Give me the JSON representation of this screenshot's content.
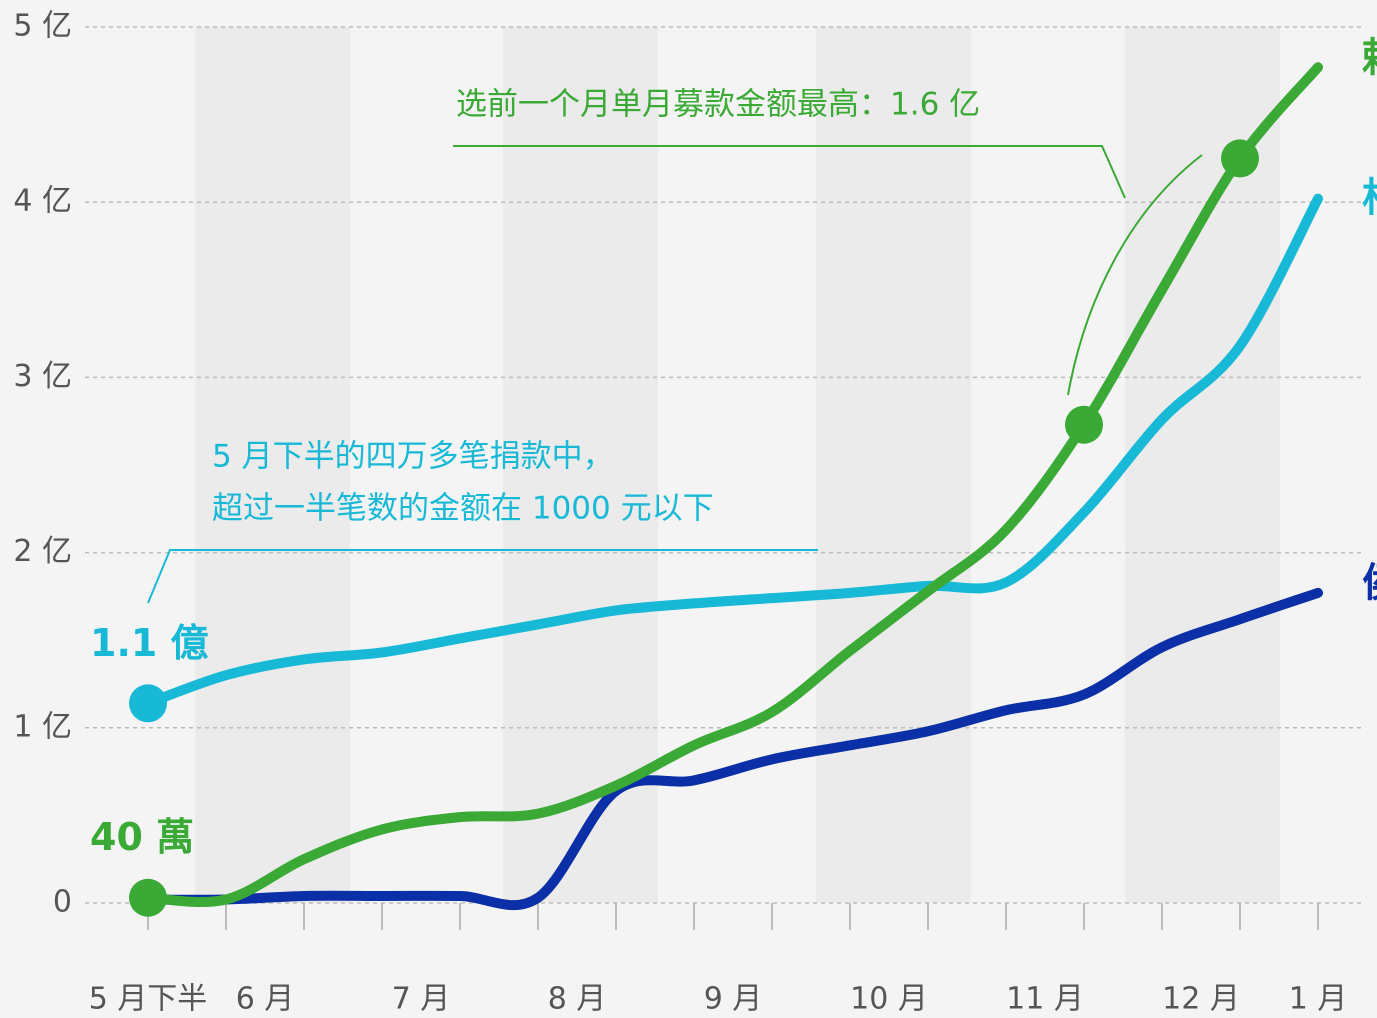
{
  "chart_data": {
    "type": "line",
    "x": [
      0,
      1,
      2,
      3,
      4,
      5,
      6,
      7,
      8,
      9,
      10,
      11,
      12,
      13,
      14,
      15
    ],
    "xlim": [
      0,
      15
    ],
    "xticks": [
      {
        "value": 0,
        "label": "5 月下半"
      },
      {
        "value": 1.5,
        "label": "6 月"
      },
      {
        "value": 3.5,
        "label": "7 月"
      },
      {
        "value": 5.5,
        "label": "8 月"
      },
      {
        "value": 7.5,
        "label": "9 月"
      },
      {
        "value": 9.5,
        "label": "10 月"
      },
      {
        "value": 11.5,
        "label": "11 月"
      },
      {
        "value": 13.5,
        "label": "12 月"
      },
      {
        "value": 15,
        "label": "1 月"
      }
    ],
    "x_minor_ticks": [
      0,
      1,
      2,
      3,
      4,
      5,
      6,
      7,
      8,
      9,
      10,
      11,
      12,
      13,
      14,
      15
    ],
    "ylim": [
      0,
      5
    ],
    "yticks": [
      0,
      {
        "value": 1,
        "label": "1 亿"
      },
      {
        "value": 2,
        "label": "2 亿"
      },
      {
        "value": 3,
        "label": "3 亿"
      },
      {
        "value": 4,
        "label": "4 亿"
      },
      {
        "value": 5,
        "label": "5 亿"
      }
    ],
    "grid": true,
    "series": [
      {
        "name": "柯",
        "color": "#17b9d6",
        "values": [
          1.14,
          1.3,
          1.39,
          1.43,
          1.51,
          1.59,
          1.67,
          1.71,
          1.74,
          1.77,
          1.81,
          1.83,
          2.23,
          2.76,
          3.18,
          4.02
        ],
        "markers": [
          0
        ],
        "marker_label": "1.1 億"
      },
      {
        "name": "侯",
        "color": "#0b2fa6",
        "values": [
          0.02,
          0.02,
          0.04,
          0.04,
          0.04,
          0.03,
          0.64,
          0.7,
          0.82,
          0.9,
          0.98,
          1.1,
          1.19,
          1.46,
          1.62,
          1.77
        ]
      },
      {
        "name": "賴",
        "color": "#3aa935",
        "values": [
          0.03,
          0.02,
          0.25,
          0.42,
          0.49,
          0.51,
          0.67,
          0.9,
          1.09,
          1.44,
          1.78,
          2.13,
          2.73,
          3.5,
          4.25,
          4.77
        ],
        "markers": [
          0,
          12,
          14
        ],
        "marker_label": "40 萬"
      }
    ],
    "annotations": {
      "green": "选前一个月单月募款金额最高：1.6 亿",
      "cyan": [
        "5 月下半的四万多笔捐款中，",
        "超过一半笔数的金额在 1000 元以下"
      ]
    }
  }
}
